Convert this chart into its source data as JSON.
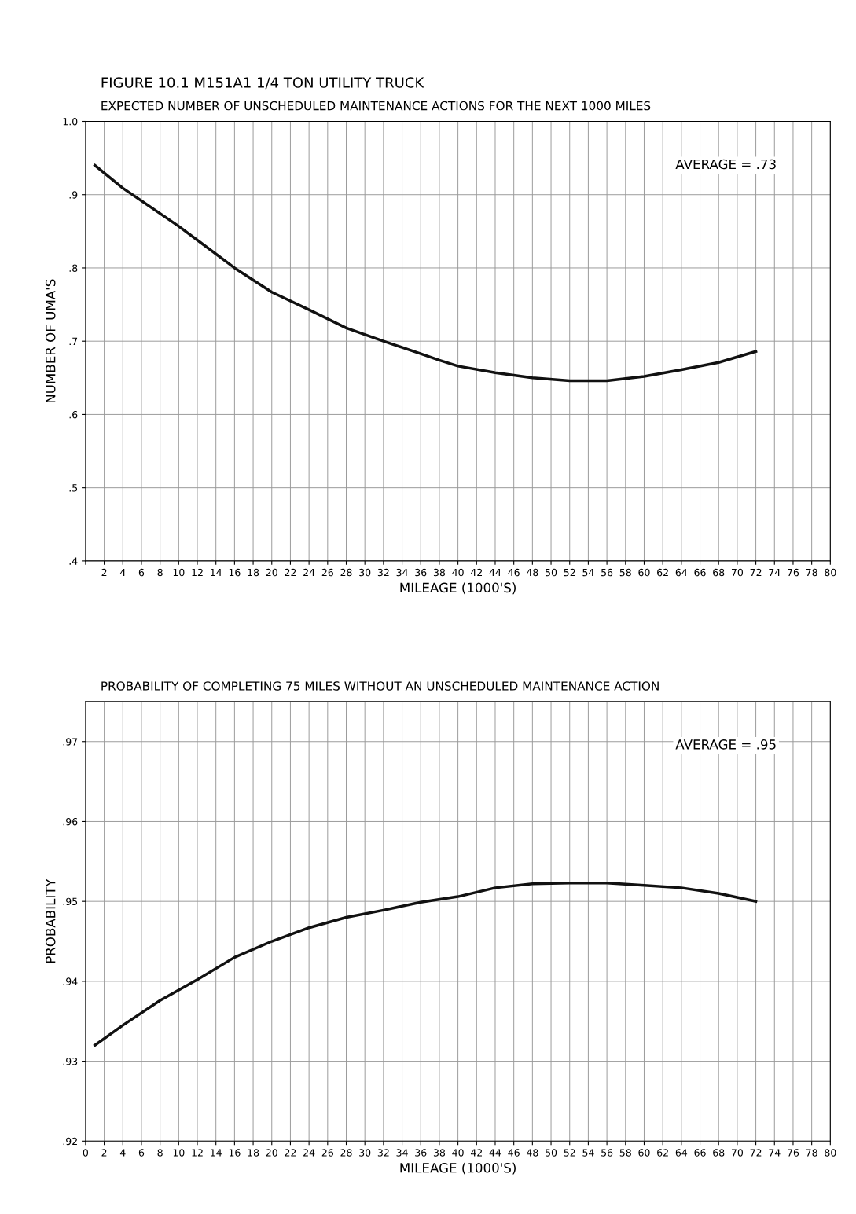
{
  "chart_data": [
    {
      "type": "line",
      "title": "FIGURE 10.1 M151A1 1/4 TON UTILITY TRUCK",
      "subtitle": "EXPECTED NUMBER OF UNSCHEDULED MAINTENANCE ACTIONS FOR THE NEXT 1000 MILES",
      "xlabel": "MILEAGE (1000'S)",
      "ylabel": "NUMBER OF UMA'S",
      "x": [
        1,
        4,
        10,
        16,
        20,
        24,
        28,
        32,
        36,
        38,
        40,
        44,
        48,
        52,
        56,
        60,
        64,
        68,
        72
      ],
      "series": [
        {
          "color": "#111111",
          "values": [
            0.94,
            0.909,
            0.857,
            0.8,
            0.767,
            0.743,
            0.718,
            0.7,
            0.683,
            0.674,
            0.666,
            0.657,
            0.65,
            0.646,
            0.646,
            0.652,
            0.661,
            0.671,
            0.686
          ]
        }
      ],
      "xlim": [
        0,
        80
      ],
      "xticks": [
        {
          "value": 0,
          "label": null
        },
        2,
        4,
        6,
        8,
        10,
        12,
        14,
        16,
        18,
        20,
        22,
        24,
        26,
        28,
        30,
        32,
        34,
        36,
        38,
        40,
        42,
        44,
        46,
        48,
        50,
        52,
        54,
        56,
        58,
        60,
        62,
        64,
        66,
        68,
        70,
        72,
        74,
        76,
        78,
        80
      ],
      "ylim": [
        0.4,
        1.0
      ],
      "yticks": [
        {
          "value": 0.4,
          "label": ".4"
        },
        {
          "value": 0.5,
          "label": ".5"
        },
        {
          "value": 0.6,
          "label": ".6"
        },
        {
          "value": 0.7,
          "label": ".7"
        },
        {
          "value": 0.8,
          "label": ".8"
        },
        {
          "value": 0.9,
          "label": ".9"
        },
        {
          "value": 1.0,
          "label": "1.0"
        }
      ],
      "annotations": [
        "AVERAGE = .73"
      ],
      "grid": true,
      "line_style": "solid",
      "marker": "none"
    },
    {
      "type": "line",
      "title": "PROBABILITY OF COMPLETING 75 MILES WITHOUT AN UNSCHEDULED MAINTENANCE ACTION",
      "xlabel": "MILEAGE (1000'S)",
      "ylabel": "PROBABILITY",
      "x": [
        1,
        4,
        8,
        12,
        16,
        20,
        24,
        28,
        32,
        36,
        40,
        44,
        48,
        52,
        56,
        60,
        64,
        68,
        72
      ],
      "series": [
        {
          "color": "#111111",
          "values": [
            0.932,
            0.9345,
            0.9376,
            0.9402,
            0.943,
            0.945,
            0.9467,
            0.948,
            0.9489,
            0.9499,
            0.9506,
            0.9517,
            0.9522,
            0.9523,
            0.9523,
            0.952,
            0.9517,
            0.951,
            0.95
          ]
        }
      ],
      "xlim": [
        0,
        80
      ],
      "xticks": [
        0,
        2,
        4,
        6,
        8,
        10,
        12,
        14,
        16,
        18,
        20,
        22,
        24,
        26,
        28,
        30,
        32,
        34,
        36,
        38,
        40,
        42,
        44,
        46,
        48,
        50,
        52,
        54,
        56,
        58,
        60,
        62,
        64,
        66,
        68,
        70,
        72,
        74,
        76,
        78,
        80
      ],
      "ylim": [
        0.92,
        0.975
      ],
      "yticks": [
        {
          "value": 0.92,
          "label": ".92"
        },
        {
          "value": 0.93,
          "label": ".93"
        },
        {
          "value": 0.94,
          "label": ".94"
        },
        {
          "value": 0.95,
          "label": ".95"
        },
        {
          "value": 0.96,
          "label": ".96"
        },
        {
          "value": 0.97,
          "label": ".97"
        }
      ],
      "annotations": [
        "AVERAGE = .95"
      ],
      "grid": true,
      "line_style": "solid",
      "marker": "none"
    }
  ]
}
